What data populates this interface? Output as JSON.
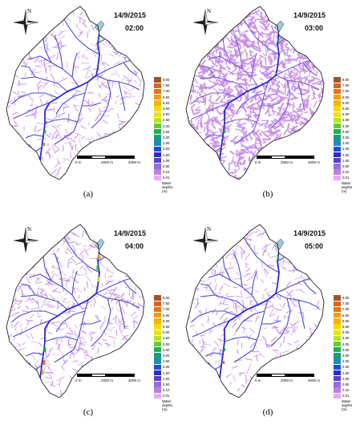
{
  "panels": [
    {
      "id": "a",
      "date": "14/9/2015",
      "time": "02:00",
      "caption": "(a)",
      "flood_extent": "low"
    },
    {
      "id": "b",
      "date": "14/9/2015",
      "time": "03:00",
      "caption": "(b)",
      "flood_extent": "high"
    },
    {
      "id": "c",
      "date": "14/9/2015",
      "time": "04:00",
      "caption": "(c)",
      "flood_extent": "medium"
    },
    {
      "id": "d",
      "date": "14/9/2015",
      "time": "05:00",
      "caption": "(d)",
      "flood_extent": "low"
    }
  ],
  "north_label": "N",
  "legend": {
    "title_lines": [
      "Water",
      "depths",
      "(m)"
    ],
    "classes": [
      {
        "value": "8.00",
        "color": "#a0522d"
      },
      {
        "value": "7.50",
        "color": "#d2691e"
      },
      {
        "value": "7.00",
        "color": "#e8731a"
      },
      {
        "value": "6.50",
        "color": "#f39c12"
      },
      {
        "value": "6.00",
        "color": "#f4b400"
      },
      {
        "value": "5.50",
        "color": "#ffd700"
      },
      {
        "value": "5.00",
        "color": "#e6e600"
      },
      {
        "value": "4.50",
        "color": "#b5e61d"
      },
      {
        "value": "4.00",
        "color": "#66cc33"
      },
      {
        "value": "3.50",
        "color": "#22b14c"
      },
      {
        "value": "3.00",
        "color": "#1a9e7a"
      },
      {
        "value": "2.50",
        "color": "#1d8bbf"
      },
      {
        "value": "2.00",
        "color": "#1f4fd1"
      },
      {
        "value": "1.50",
        "color": "#2c2cc8"
      },
      {
        "value": "1.00",
        "color": "#5a3fd6"
      },
      {
        "value": "0.50",
        "color": "#9370db"
      },
      {
        "value": "0.10",
        "color": "#c07ee0"
      },
      {
        "value": "0.01",
        "color": "#e0b0f0"
      }
    ]
  },
  "scale": {
    "labels": [
      "0 m",
      "2000 m",
      "4000 m"
    ]
  },
  "colors": {
    "stream": "#c58be6",
    "main_channel": "#2a2ad0",
    "outline": "#222222"
  }
}
